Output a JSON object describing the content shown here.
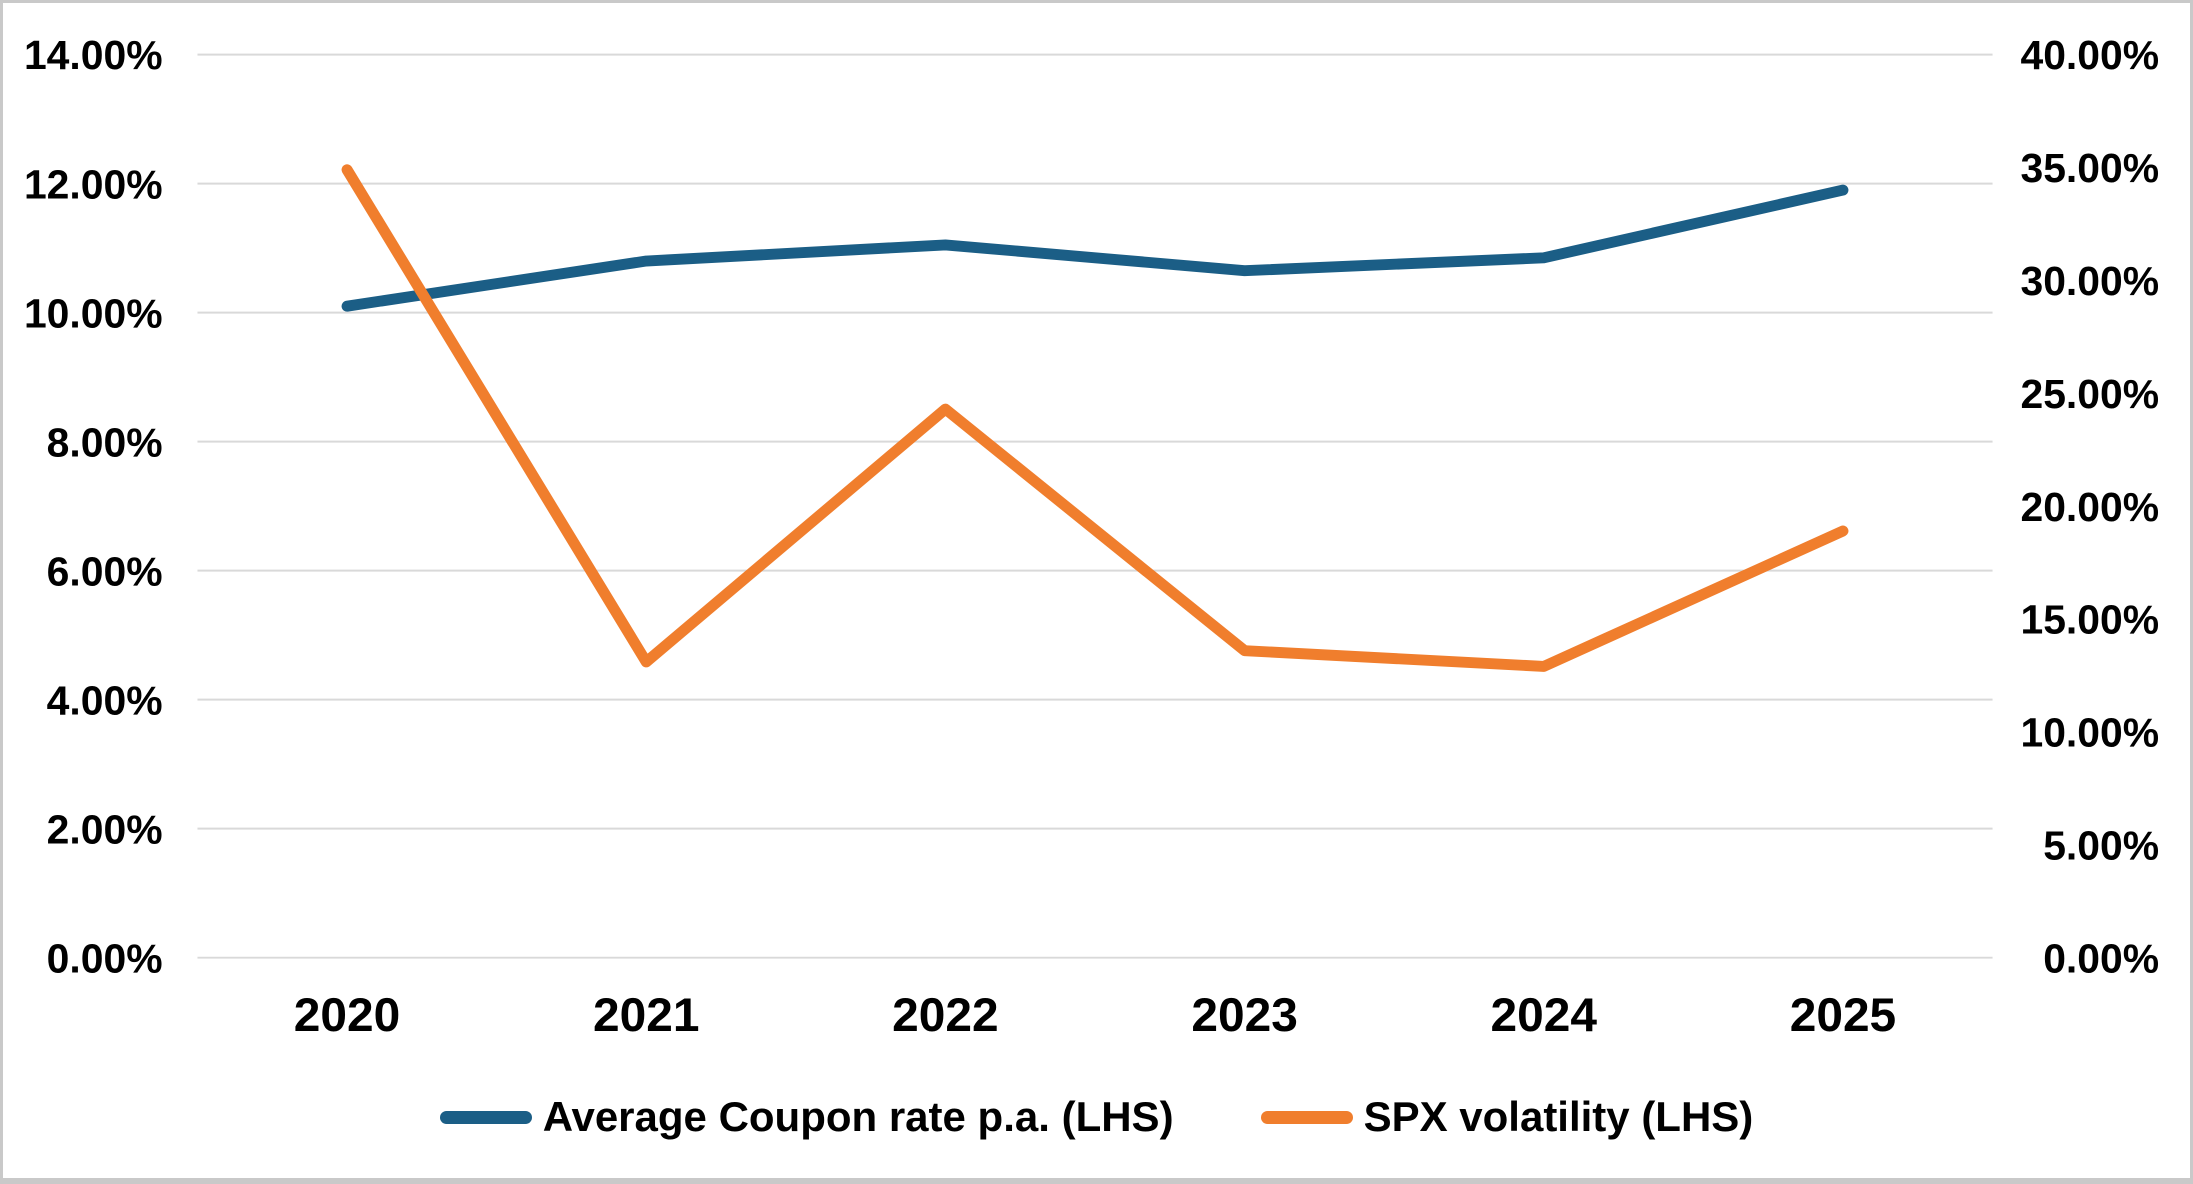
{
  "chart_data": {
    "type": "line",
    "categories": [
      "2020",
      "2021",
      "2022",
      "2023",
      "2024",
      "2025"
    ],
    "series": [
      {
        "name": "Average Coupon rate p.a. (LHS)",
        "axis": "left",
        "color": "#1B5E86",
        "values": [
          10.1,
          10.8,
          11.05,
          10.65,
          10.85,
          11.9
        ]
      },
      {
        "name": "SPX volatility (LHS)",
        "axis": "right",
        "color": "#F07E2D",
        "values": [
          34.9,
          13.1,
          24.3,
          13.6,
          12.9,
          18.9
        ]
      }
    ],
    "left_axis": {
      "min": 0,
      "max": 14,
      "tick_labels": [
        "14.00%",
        "12.00%",
        "10.00%",
        "8.00%",
        "6.00%",
        "4.00%",
        "2.00%",
        "0.00%"
      ]
    },
    "right_axis": {
      "min": 0,
      "max": 40,
      "tick_labels": [
        "40.00%",
        "35.00%",
        "30.00%",
        "25.00%",
        "20.00%",
        "15.00%",
        "10.00%",
        "5.00%",
        "0.00%"
      ]
    },
    "grid": "horizontal",
    "gridline_color": "#D9D9D9",
    "text_color": "#000000",
    "background_color": "#FFFFFF",
    "legend_position": "bottom"
  }
}
